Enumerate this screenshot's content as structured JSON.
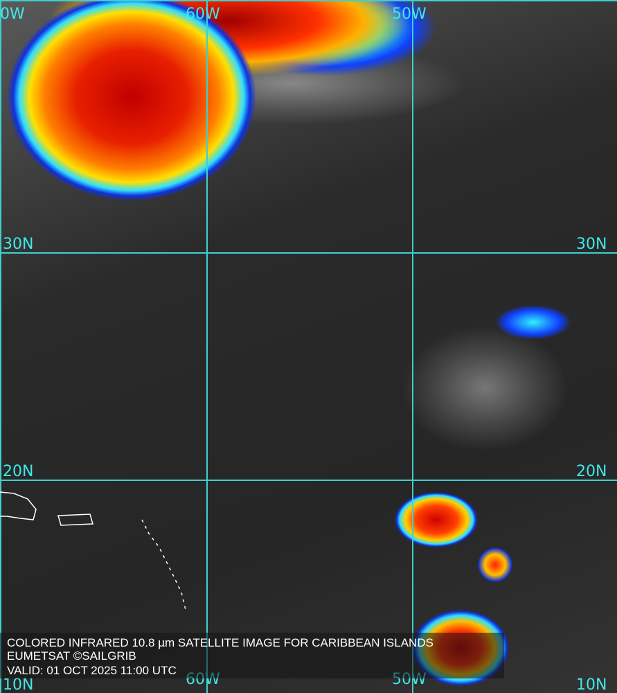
{
  "map": {
    "grid_labels": {
      "lon_70w_partial": "0W",
      "lon_60w": "60W",
      "lon_50w": "50W",
      "lat_30n": "30N",
      "lat_20n": "20N",
      "lat_10n": "10N",
      "bottom_60w": "60W",
      "bottom_50w": "50W",
      "bottom_10n_right": "10N"
    },
    "colors": {
      "grid": "#3fd0d0",
      "cold_cloud_top": "#c00000",
      "warm": "#1030e0"
    }
  },
  "caption": {
    "title": "COLORED INFRARED 10.8 µm SATELLITE IMAGE FOR CARIBBEAN ISLANDS",
    "credit": "EUMETSAT ©SAILGRIB",
    "valid": "VALID:  01 OCT 2025 11:00 UTC"
  }
}
